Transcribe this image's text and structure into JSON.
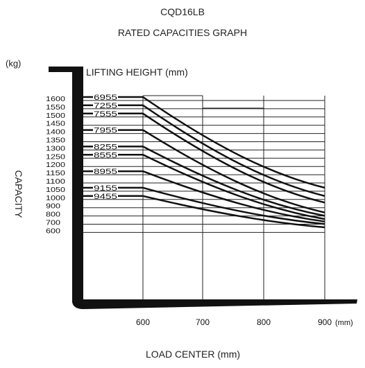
{
  "chart_data": {
    "type": "line",
    "title": "CQD16LB",
    "subtitle": "RATED CAPACITIES GRAPH",
    "xlabel": "LOAD CENTER (mm)",
    "ylabel": "CAPACITY",
    "y_unit": "(kg)",
    "x_unit": "(mm)",
    "series_title": "LIFTING HEIGHT (mm)",
    "x_ticks": [
      "600",
      "700",
      "800",
      "900"
    ],
    "y_ticks": [
      "1600",
      "1550",
      "1500",
      "1450",
      "1400",
      "1350",
      "1300",
      "1250",
      "1200",
      "1150",
      "1100",
      "1050",
      "1000",
      "900",
      "800",
      "700",
      "600"
    ],
    "xlim": [
      500,
      900
    ],
    "grid": true,
    "series": [
      {
        "name": "6955",
        "x": [
          600,
          900
        ],
        "y": [
          1600,
          1050
        ]
      },
      {
        "name": "7255",
        "x": [
          600,
          900
        ],
        "y": [
          1550,
          1000
        ]
      },
      {
        "name": "7555",
        "x": [
          600,
          900
        ],
        "y": [
          1500,
          920
        ]
      },
      {
        "name": "7955",
        "x": [
          600,
          900
        ],
        "y": [
          1400,
          800
        ]
      },
      {
        "name": "8255",
        "x": [
          600,
          900
        ],
        "y": [
          1300,
          760
        ]
      },
      {
        "name": "8555",
        "x": [
          600,
          900
        ],
        "y": [
          1250,
          720
        ]
      },
      {
        "name": "8955",
        "x": [
          600,
          900
        ],
        "y": [
          1150,
          690
        ]
      },
      {
        "name": "9155",
        "x": [
          600,
          900
        ],
        "y": [
          1050,
          660
        ]
      },
      {
        "name": "9455",
        "x": [
          600,
          900
        ],
        "y": [
          1000,
          620
        ]
      }
    ]
  },
  "colors": {
    "ink": "#111111",
    "grid": "#222222"
  }
}
